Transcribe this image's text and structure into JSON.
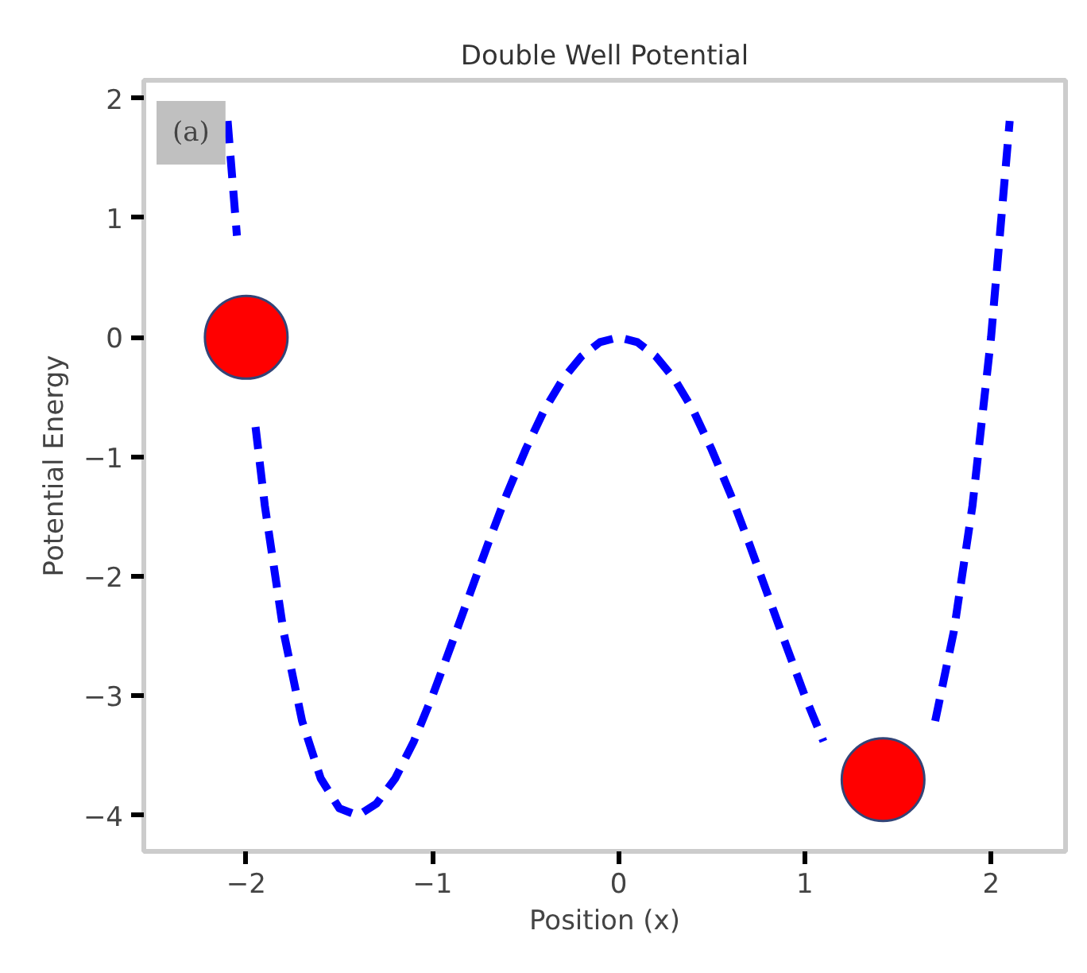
{
  "chart_data": {
    "type": "line",
    "title": "Double Well Potential",
    "xlabel": "Position (x)",
    "ylabel": "Potential Energy",
    "annotations": [
      "(a)"
    ],
    "xlim": [
      -2.55,
      2.4
    ],
    "ylim": [
      -4.3,
      2.15
    ],
    "xticks": [
      {
        "value": -2,
        "label": "−2"
      },
      {
        "value": -1,
        "label": "−1"
      },
      0,
      1,
      2
    ],
    "yticks": [
      {
        "value": -4,
        "label": "−4"
      },
      {
        "value": -3,
        "label": "−3"
      },
      {
        "value": -2,
        "label": "−2"
      },
      {
        "value": -1,
        "label": "−1"
      },
      0,
      1,
      2
    ],
    "grid": false,
    "series": [
      {
        "color": "#0000ff",
        "line_style": "dashed",
        "marker": "none",
        "x": [
          -2.1,
          -2.05,
          -2.0,
          -1.95,
          -1.9,
          -1.8,
          -1.7,
          -1.6,
          -1.5,
          -1.4,
          -1.3,
          -1.2,
          -1.1,
          -1.0,
          -0.9,
          -0.8,
          -0.7,
          -0.6,
          -0.5,
          -0.4,
          -0.3,
          -0.2,
          -0.1,
          0,
          0.1,
          0.2,
          0.3,
          0.4,
          0.5,
          0.6,
          0.7,
          0.8,
          0.9,
          1.0,
          1.1,
          1.2,
          1.3,
          1.4,
          1.5,
          1.6,
          1.7,
          1.8,
          1.9,
          2.0,
          2.1
        ],
        "values": [
          1.81,
          0.85,
          null,
          -0.75,
          -1.41,
          -2.46,
          -3.21,
          -3.69,
          -3.94,
          -4.0,
          -3.9,
          -3.69,
          -3.38,
          -3,
          -2.58,
          -2.15,
          -1.72,
          -1.31,
          -0.94,
          -0.61,
          -0.35,
          -0.16,
          -0.04,
          0,
          -0.04,
          -0.16,
          -0.35,
          -0.61,
          -0.94,
          -1.31,
          -1.72,
          -2.15,
          -2.58,
          -3,
          -3.38,
          null,
          null,
          null,
          null,
          null,
          -3.21,
          -2.46,
          -1.41,
          0,
          1.81
        ]
      },
      {
        "type": "scatter",
        "color": "#ff0000",
        "marker": "circle",
        "x": [
          -2.0,
          1.42
        ],
        "values": [
          0,
          -3.7
        ]
      }
    ]
  }
}
